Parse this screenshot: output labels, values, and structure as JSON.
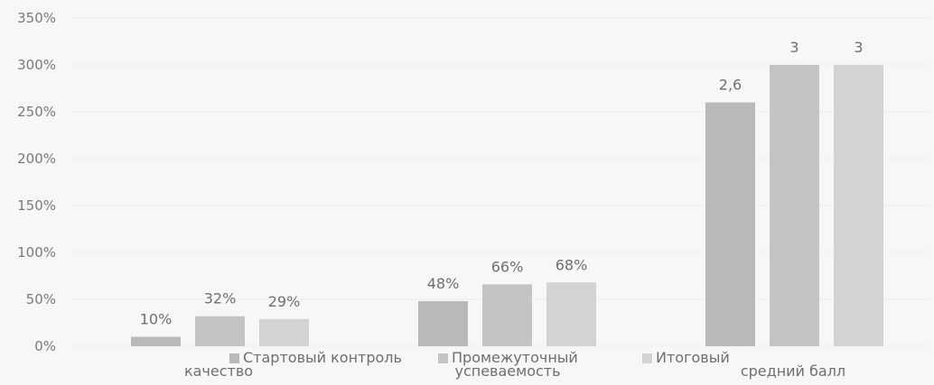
{
  "chart_data": {
    "type": "bar",
    "categories": [
      "качество",
      "успеваемость",
      "средний балл"
    ],
    "series": [
      {
        "name": "Стартовый контроль",
        "values": [
          0.1,
          0.48,
          2.6
        ],
        "labels": [
          "10%",
          "48%",
          "2,6"
        ],
        "color": "#b9b9b9"
      },
      {
        "name": "Промежуточный",
        "values": [
          0.32,
          0.66,
          3.0
        ],
        "labels": [
          "32%",
          "66%",
          "3"
        ],
        "color": "#c4c4c4"
      },
      {
        "name": "Итоговый",
        "values": [
          0.29,
          0.68,
          3.0
        ],
        "labels": [
          "29%",
          "68%",
          "3"
        ],
        "color": "#d3d3d3"
      }
    ],
    "y_ticks": [
      "0%",
      "50%",
      "100%",
      "150%",
      "200%",
      "250%",
      "300%",
      "350%"
    ],
    "ylim": [
      0,
      3.5
    ],
    "legend_position": "bottom",
    "grid": true
  }
}
